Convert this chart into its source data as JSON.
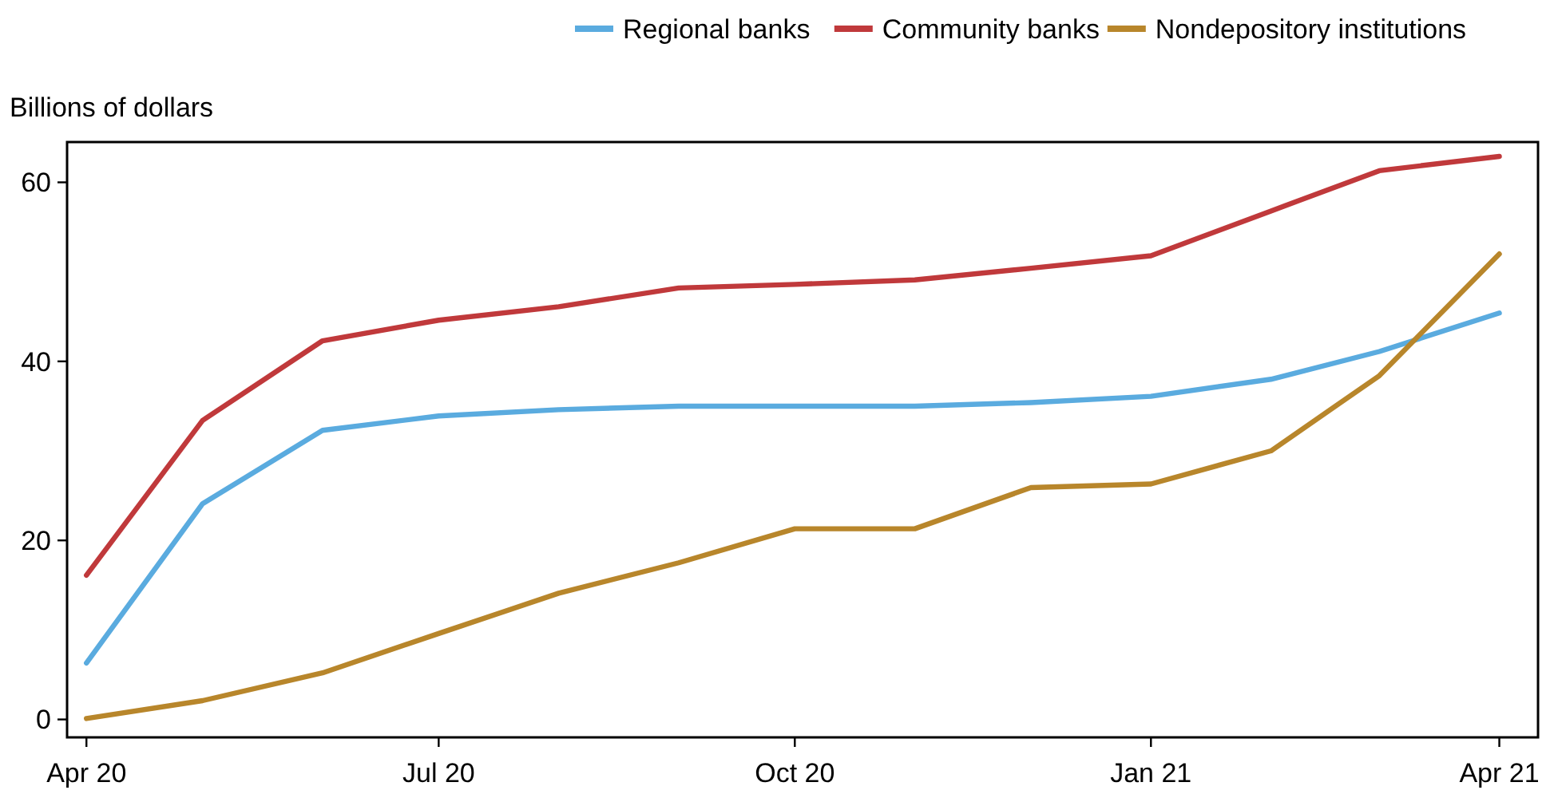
{
  "chart_data": {
    "type": "line",
    "ylabel": "Billions of dollars",
    "x": [
      "2020-04",
      "2020-05",
      "2020-06",
      "2020-07",
      "2020-08",
      "2020-09",
      "2020-10",
      "2020-11",
      "2020-12",
      "2021-01",
      "2021-02",
      "2021-03",
      "2021-04"
    ],
    "series": [
      {
        "name": "Regional banks",
        "color": "#5aabdf",
        "values": [
          6.3,
          24.1,
          32.3,
          33.9,
          34.6,
          35.0,
          35.0,
          35.0,
          35.4,
          36.1,
          38.0,
          41.1,
          45.4
        ]
      },
      {
        "name": "Community banks",
        "color": "#c0393b",
        "values": [
          16.1,
          33.4,
          42.3,
          44.6,
          46.1,
          48.2,
          48.6,
          49.1,
          50.4,
          51.8,
          56.8,
          61.3,
          62.9
        ]
      },
      {
        "name": "Nondepository institutions",
        "color": "#b8862b",
        "values": [
          0.1,
          2.1,
          5.2,
          9.6,
          14.1,
          17.5,
          21.3,
          21.3,
          25.9,
          26.3,
          30.0,
          38.4,
          52.0
        ]
      }
    ],
    "xlim": [
      "2020-03-27",
      "2021-04-11"
    ],
    "xticks": [
      {
        "value": "2020-04",
        "label": "Apr 20"
      },
      {
        "value": "2020-07",
        "label": "Jul 20"
      },
      {
        "value": "2020-10",
        "label": "Oct 20"
      },
      {
        "value": "2021-01",
        "label": "Jan 21"
      },
      {
        "value": "2021-04",
        "label": "Apr 21"
      }
    ],
    "ylim": [
      -2,
      64.5
    ],
    "yticks": [
      0,
      20,
      40,
      60
    ],
    "grid": false,
    "legend": "top right",
    "marker": "none",
    "line_style": "solid"
  }
}
